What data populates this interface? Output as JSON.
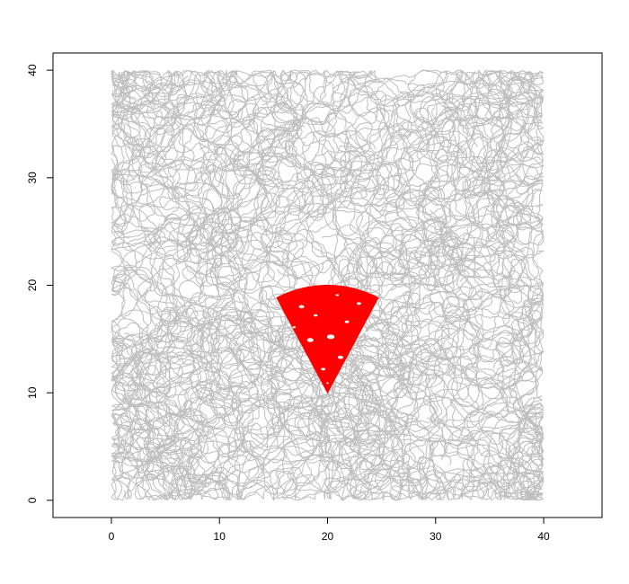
{
  "chart_data": {
    "type": "scatter",
    "title": "",
    "xlabel": "",
    "ylabel": "",
    "xlim": [
      -5.4,
      45.4
    ],
    "ylim": [
      -1.6,
      41.6
    ],
    "xticks": [
      0,
      10,
      20,
      30,
      40
    ],
    "yticks": [
      0,
      10,
      20,
      30,
      40
    ],
    "xtick_labels": [
      "0",
      "10",
      "20",
      "30",
      "40"
    ],
    "ytick_labels": [
      "0",
      "10",
      "20",
      "30",
      "40"
    ],
    "grid": false,
    "legend": "none",
    "domain_extent": {
      "x": [
        0,
        40
      ],
      "y": [
        0,
        40
      ]
    },
    "series": [
      {
        "kind": "random-walk-paths",
        "color": "#bebebe",
        "path_count": 130,
        "steps_per_path": 260,
        "bounds": {
          "x": [
            0,
            40
          ],
          "y": [
            0,
            40
          ]
        }
      },
      {
        "kind": "filled-sector",
        "color": "#ff0000",
        "apex": [
          20,
          10
        ],
        "radius": 10,
        "angle_from_deg": 62,
        "angle_to_deg": 118,
        "holes": [
          {
            "x": 20.3,
            "y": 15.2,
            "r": 0.35
          },
          {
            "x": 18.4,
            "y": 14.9,
            "r": 0.3
          },
          {
            "x": 21.2,
            "y": 13.3,
            "r": 0.25
          },
          {
            "x": 17.6,
            "y": 18.0,
            "r": 0.25
          },
          {
            "x": 22.9,
            "y": 18.3,
            "r": 0.2
          },
          {
            "x": 19.6,
            "y": 12.2,
            "r": 0.2
          },
          {
            "x": 21.8,
            "y": 16.6,
            "r": 0.2
          },
          {
            "x": 23.6,
            "y": 15.6,
            "r": 0.18
          },
          {
            "x": 18.9,
            "y": 17.2,
            "r": 0.18
          },
          {
            "x": 16.9,
            "y": 16.1,
            "r": 0.15
          },
          {
            "x": 20.9,
            "y": 19.1,
            "r": 0.15
          },
          {
            "x": 20.0,
            "y": 10.9,
            "r": 0.12
          }
        ]
      }
    ]
  }
}
